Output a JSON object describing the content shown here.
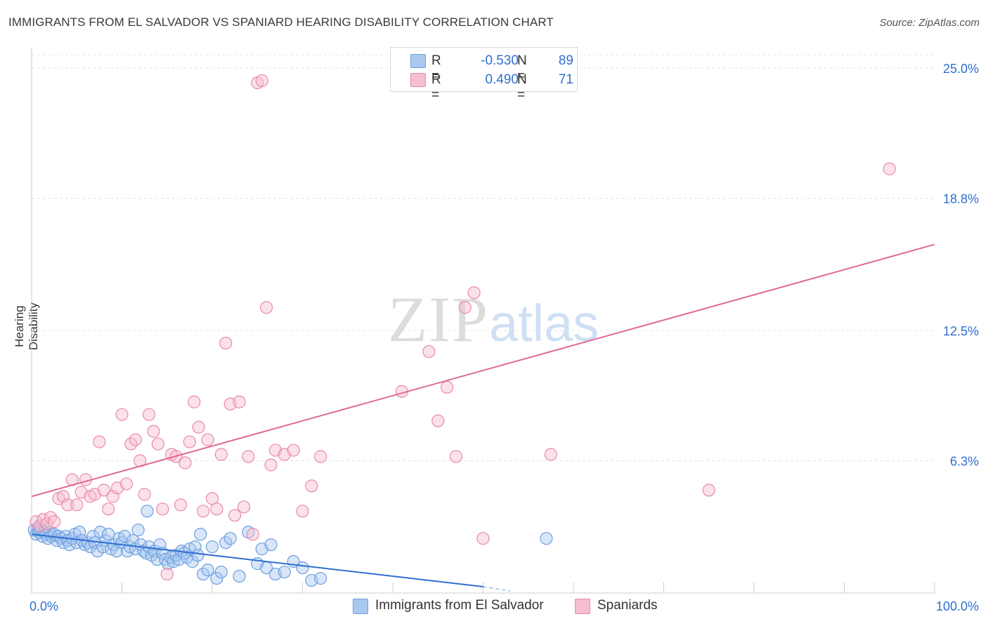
{
  "title": "IMMIGRANTS FROM EL SALVADOR VS SPANIARD HEARING DISABILITY CORRELATION CHART",
  "source": "Source: ZipAtlas.com",
  "watermark": {
    "zip": "ZIP",
    "atlas": "atlas"
  },
  "legend": {
    "rows": [
      {
        "r_label": "R =",
        "r_value": "-0.530",
        "n_label": "N =",
        "n_value": "89",
        "color": "#a9c8f0",
        "border": "#6d9fe0"
      },
      {
        "r_label": "R =",
        "r_value": "0.490",
        "n_label": "N =",
        "n_value": "71",
        "color": "#f7bdd0",
        "border": "#e98aaa"
      }
    ]
  },
  "bottom_legend": [
    {
      "label": "Immigrants from El Salvador",
      "color": "#a9c8f0",
      "border": "#6d9fe0"
    },
    {
      "label": "Spaniards",
      "color": "#f7bdd0",
      "border": "#e98aaa"
    }
  ],
  "chart_data": {
    "type": "scatter",
    "title": "IMMIGRANTS FROM EL SALVADOR VS SPANIARD HEARING DISABILITY CORRELATION CHART",
    "xlabel": "",
    "ylabel": "Hearing Disability",
    "xlim": [
      0,
      100
    ],
    "ylim": [
      0,
      25
    ],
    "x_tick_labels": [
      {
        "value": 0,
        "label": "0.0%"
      },
      {
        "value": 100,
        "label": "100.0%"
      }
    ],
    "y_tick_labels": [
      {
        "value": 6.3,
        "label": "6.3%"
      },
      {
        "value": 12.5,
        "label": "12.5%"
      },
      {
        "value": 18.8,
        "label": "18.8%"
      },
      {
        "value": 25.0,
        "label": "25.0%"
      }
    ],
    "grid": true,
    "series": [
      {
        "name": "Immigrants from El Salvador",
        "color": "#6d9fe0",
        "fill": "#a9c8f0",
        "trend": {
          "x": [
            0,
            50
          ],
          "y": [
            2.8,
            0.3
          ],
          "dashed_to": [
            53,
            0.1
          ]
        },
        "points": [
          [
            0.3,
            3.0
          ],
          [
            0.5,
            2.8
          ],
          [
            0.7,
            3.1
          ],
          [
            0.8,
            2.9
          ],
          [
            1.0,
            3.0
          ],
          [
            1.2,
            2.7
          ],
          [
            1.4,
            2.9
          ],
          [
            1.6,
            2.8
          ],
          [
            1.8,
            2.6
          ],
          [
            2.0,
            2.9
          ],
          [
            2.2,
            2.7
          ],
          [
            2.5,
            2.8
          ],
          [
            2.8,
            2.5
          ],
          [
            3.0,
            2.7
          ],
          [
            3.3,
            2.6
          ],
          [
            3.5,
            2.4
          ],
          [
            3.8,
            2.7
          ],
          [
            4.0,
            2.5
          ],
          [
            4.2,
            2.3
          ],
          [
            4.5,
            2.6
          ],
          [
            4.8,
            2.8
          ],
          [
            5.0,
            2.4
          ],
          [
            5.3,
            2.9
          ],
          [
            5.6,
            2.5
          ],
          [
            5.9,
            2.3
          ],
          [
            6.2,
            2.4
          ],
          [
            6.5,
            2.2
          ],
          [
            6.8,
            2.7
          ],
          [
            7.0,
            2.4
          ],
          [
            7.3,
            2.0
          ],
          [
            7.6,
            2.9
          ],
          [
            7.9,
            2.2
          ],
          [
            8.2,
            2.5
          ],
          [
            8.5,
            2.8
          ],
          [
            8.8,
            2.1
          ],
          [
            9.1,
            2.3
          ],
          [
            9.4,
            2.0
          ],
          [
            9.7,
            2.6
          ],
          [
            10.0,
            2.4
          ],
          [
            10.3,
            2.7
          ],
          [
            10.6,
            2.0
          ],
          [
            10.9,
            2.2
          ],
          [
            11.2,
            2.5
          ],
          [
            11.5,
            2.1
          ],
          [
            11.8,
            3.0
          ],
          [
            12.1,
            2.3
          ],
          [
            12.4,
            2.0
          ],
          [
            12.7,
            1.9
          ],
          [
            13.0,
            2.2
          ],
          [
            13.3,
            1.8
          ],
          [
            13.6,
            2.0
          ],
          [
            13.9,
            1.6
          ],
          [
            14.2,
            2.3
          ],
          [
            14.5,
            1.9
          ],
          [
            14.8,
            1.6
          ],
          [
            15.1,
            1.4
          ],
          [
            15.4,
            1.7
          ],
          [
            15.7,
            1.5
          ],
          [
            16.0,
            1.8
          ],
          [
            16.3,
            1.6
          ],
          [
            16.6,
            2.0
          ],
          [
            16.9,
            1.9
          ],
          [
            17.2,
            1.7
          ],
          [
            17.5,
            2.1
          ],
          [
            17.8,
            1.5
          ],
          [
            18.1,
            2.2
          ],
          [
            18.4,
            1.8
          ],
          [
            18.7,
            2.8
          ],
          [
            19.0,
            0.9
          ],
          [
            19.5,
            1.1
          ],
          [
            20.0,
            2.2
          ],
          [
            20.5,
            0.7
          ],
          [
            21.0,
            1.0
          ],
          [
            21.5,
            2.4
          ],
          [
            22.0,
            2.6
          ],
          [
            23.0,
            0.8
          ],
          [
            24.0,
            2.9
          ],
          [
            25.0,
            1.4
          ],
          [
            25.5,
            2.1
          ],
          [
            26.0,
            1.2
          ],
          [
            26.5,
            2.3
          ],
          [
            27.0,
            0.9
          ],
          [
            28.0,
            1.0
          ],
          [
            29.0,
            1.5
          ],
          [
            30.0,
            1.2
          ],
          [
            31.0,
            0.6
          ],
          [
            32.0,
            0.7
          ],
          [
            12.8,
            3.9
          ],
          [
            57.0,
            2.6
          ]
        ]
      },
      {
        "name": "Spaniards",
        "color": "#e98aaa",
        "fill": "#f7bdd0",
        "trend": {
          "x": [
            0,
            100
          ],
          "y": [
            4.6,
            16.6
          ]
        },
        "points": [
          [
            0.5,
            3.4
          ],
          [
            0.9,
            3.2
          ],
          [
            1.3,
            3.5
          ],
          [
            1.7,
            3.3
          ],
          [
            2.1,
            3.6
          ],
          [
            2.5,
            3.4
          ],
          [
            3.0,
            4.5
          ],
          [
            3.5,
            4.6
          ],
          [
            4.0,
            4.2
          ],
          [
            4.5,
            5.4
          ],
          [
            5.0,
            4.2
          ],
          [
            5.5,
            4.8
          ],
          [
            6.0,
            5.4
          ],
          [
            6.5,
            4.6
          ],
          [
            7.0,
            4.7
          ],
          [
            7.5,
            7.2
          ],
          [
            8.0,
            4.9
          ],
          [
            8.5,
            4.0
          ],
          [
            9.0,
            4.6
          ],
          [
            9.5,
            5.0
          ],
          [
            10.0,
            8.5
          ],
          [
            10.5,
            5.2
          ],
          [
            11.0,
            7.1
          ],
          [
            11.5,
            7.3
          ],
          [
            12.0,
            6.3
          ],
          [
            12.5,
            4.7
          ],
          [
            13.0,
            8.5
          ],
          [
            13.5,
            7.7
          ],
          [
            14.0,
            7.1
          ],
          [
            14.5,
            4.0
          ],
          [
            15.0,
            0.9
          ],
          [
            15.5,
            6.6
          ],
          [
            16.0,
            6.5
          ],
          [
            16.5,
            4.2
          ],
          [
            17.0,
            6.2
          ],
          [
            17.5,
            7.2
          ],
          [
            18.0,
            9.1
          ],
          [
            18.5,
            7.9
          ],
          [
            19.0,
            3.9
          ],
          [
            19.5,
            7.3
          ],
          [
            20.0,
            4.5
          ],
          [
            20.5,
            4.0
          ],
          [
            21.0,
            6.6
          ],
          [
            21.5,
            11.9
          ],
          [
            22.0,
            9.0
          ],
          [
            22.5,
            3.7
          ],
          [
            23.0,
            9.1
          ],
          [
            23.5,
            4.1
          ],
          [
            24.0,
            6.5
          ],
          [
            24.5,
            2.8
          ],
          [
            25.0,
            24.3
          ],
          [
            25.5,
            24.4
          ],
          [
            26.0,
            13.6
          ],
          [
            26.5,
            6.1
          ],
          [
            27.0,
            6.8
          ],
          [
            28.0,
            6.6
          ],
          [
            29.0,
            6.8
          ],
          [
            30.0,
            3.9
          ],
          [
            31.0,
            5.1
          ],
          [
            32.0,
            6.5
          ],
          [
            41.0,
            9.6
          ],
          [
            44.0,
            11.5
          ],
          [
            45.0,
            8.2
          ],
          [
            46.0,
            9.8
          ],
          [
            47.0,
            6.5
          ],
          [
            48.0,
            13.6
          ],
          [
            49.0,
            14.3
          ],
          [
            50.0,
            2.6
          ],
          [
            57.5,
            6.6
          ],
          [
            75.0,
            4.9
          ],
          [
            95.0,
            20.2
          ]
        ]
      }
    ]
  }
}
